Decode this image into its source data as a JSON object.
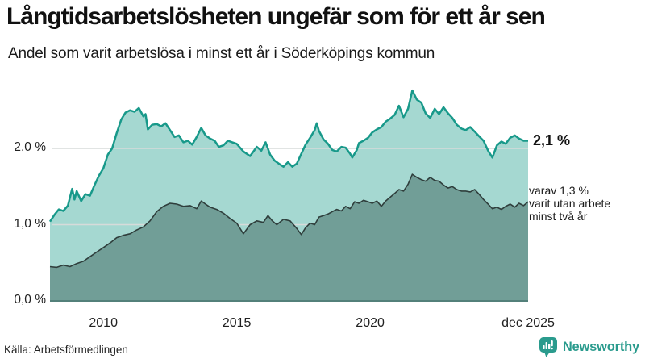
{
  "header": {
    "title": "Långtidsarbetslösheten ungefär som för ett år sen",
    "subtitle": "Andel som varit arbetslösa i minst ett år i Söderköpings kommun"
  },
  "footer": {
    "source": "Källa: Arbetsförmedlingen",
    "brand": "Newsworthy"
  },
  "colors": {
    "accent_teal": "#18998a",
    "fill_light": "#a5d8d1",
    "fill_dark": "#719e97",
    "line_dark": "#2f3e3c",
    "baseline": "#53807a",
    "grid": "#d7dbda",
    "text": "#1a1a1a",
    "brand_teal": "#2a9b8d"
  },
  "chart_data": {
    "type": "area",
    "title": "Långtidsarbetslösheten ungefär som för ett år sen",
    "subtitle": "Andel som varit arbetslösa i minst ett år i Söderköpings kommun",
    "unit": "%",
    "x_range": [
      2008.0,
      2025.92
    ],
    "ylim": [
      0,
      2.9
    ],
    "grid": true,
    "yticks": [
      {
        "value": 0,
        "label": "0,0 %"
      },
      {
        "value": 1,
        "label": "1,0 %"
      },
      {
        "value": 2,
        "label": "2,0 %"
      }
    ],
    "xticks": [
      {
        "year": 2010,
        "label": "2010"
      },
      {
        "year": 2015,
        "label": "2015"
      },
      {
        "year": 2020,
        "label": "2020"
      },
      {
        "year": 2025.92,
        "label": "dec 2025"
      }
    ],
    "annotations": {
      "last_value_label": "2,1 %",
      "secondary_label": "varav 1,3 %\nvarit utan arbete\nminst två år"
    },
    "series": [
      {
        "name": "Arbetslösa minst ett år",
        "last_value": 2.1,
        "stroke": "#18998a",
        "stroke_width": 2.5,
        "fill": "#a5d8d1",
        "points": [
          [
            2008.0,
            1.04
          ],
          [
            2008.17,
            1.13
          ],
          [
            2008.33,
            1.2
          ],
          [
            2008.5,
            1.18
          ],
          [
            2008.67,
            1.25
          ],
          [
            2008.83,
            1.47
          ],
          [
            2008.92,
            1.33
          ],
          [
            2009.0,
            1.44
          ],
          [
            2009.17,
            1.31
          ],
          [
            2009.33,
            1.4
          ],
          [
            2009.5,
            1.38
          ],
          [
            2009.67,
            1.52
          ],
          [
            2009.83,
            1.64
          ],
          [
            2010.0,
            1.74
          ],
          [
            2010.17,
            1.92
          ],
          [
            2010.33,
            2.0
          ],
          [
            2010.5,
            2.2
          ],
          [
            2010.67,
            2.38
          ],
          [
            2010.83,
            2.47
          ],
          [
            2011.0,
            2.5
          ],
          [
            2011.17,
            2.48
          ],
          [
            2011.33,
            2.53
          ],
          [
            2011.5,
            2.42
          ],
          [
            2011.58,
            2.45
          ],
          [
            2011.67,
            2.25
          ],
          [
            2011.83,
            2.31
          ],
          [
            2012.0,
            2.32
          ],
          [
            2012.17,
            2.29
          ],
          [
            2012.33,
            2.33
          ],
          [
            2012.5,
            2.24
          ],
          [
            2012.67,
            2.15
          ],
          [
            2012.83,
            2.17
          ],
          [
            2013.0,
            2.08
          ],
          [
            2013.17,
            2.1
          ],
          [
            2013.33,
            2.05
          ],
          [
            2013.5,
            2.15
          ],
          [
            2013.67,
            2.27
          ],
          [
            2013.83,
            2.17
          ],
          [
            2014.0,
            2.13
          ],
          [
            2014.17,
            2.1
          ],
          [
            2014.33,
            2.02
          ],
          [
            2014.5,
            2.04
          ],
          [
            2014.67,
            2.1
          ],
          [
            2014.83,
            2.08
          ],
          [
            2015.0,
            2.06
          ],
          [
            2015.25,
            1.96
          ],
          [
            2015.5,
            1.9
          ],
          [
            2015.75,
            2.02
          ],
          [
            2015.92,
            1.97
          ],
          [
            2016.08,
            2.08
          ],
          [
            2016.25,
            1.92
          ],
          [
            2016.42,
            1.84
          ],
          [
            2016.58,
            1.8
          ],
          [
            2016.75,
            1.76
          ],
          [
            2016.92,
            1.82
          ],
          [
            2017.08,
            1.76
          ],
          [
            2017.25,
            1.8
          ],
          [
            2017.42,
            1.93
          ],
          [
            2017.58,
            2.05
          ],
          [
            2017.75,
            2.14
          ],
          [
            2017.92,
            2.24
          ],
          [
            2018.0,
            2.33
          ],
          [
            2018.08,
            2.23
          ],
          [
            2018.25,
            2.12
          ],
          [
            2018.42,
            2.06
          ],
          [
            2018.58,
            1.98
          ],
          [
            2018.75,
            1.96
          ],
          [
            2018.92,
            2.02
          ],
          [
            2019.08,
            2.01
          ],
          [
            2019.25,
            1.93
          ],
          [
            2019.33,
            1.88
          ],
          [
            2019.5,
            1.98
          ],
          [
            2019.58,
            2.07
          ],
          [
            2019.75,
            2.1
          ],
          [
            2019.92,
            2.14
          ],
          [
            2020.08,
            2.21
          ],
          [
            2020.25,
            2.25
          ],
          [
            2020.42,
            2.28
          ],
          [
            2020.58,
            2.35
          ],
          [
            2020.75,
            2.39
          ],
          [
            2020.92,
            2.44
          ],
          [
            2021.08,
            2.56
          ],
          [
            2021.25,
            2.41
          ],
          [
            2021.42,
            2.52
          ],
          [
            2021.58,
            2.76
          ],
          [
            2021.75,
            2.64
          ],
          [
            2021.92,
            2.6
          ],
          [
            2022.08,
            2.46
          ],
          [
            2022.25,
            2.4
          ],
          [
            2022.42,
            2.52
          ],
          [
            2022.58,
            2.45
          ],
          [
            2022.75,
            2.54
          ],
          [
            2022.92,
            2.46
          ],
          [
            2023.08,
            2.4
          ],
          [
            2023.25,
            2.31
          ],
          [
            2023.42,
            2.26
          ],
          [
            2023.58,
            2.24
          ],
          [
            2023.75,
            2.28
          ],
          [
            2023.92,
            2.22
          ],
          [
            2024.08,
            2.16
          ],
          [
            2024.25,
            2.1
          ],
          [
            2024.42,
            1.97
          ],
          [
            2024.58,
            1.88
          ],
          [
            2024.75,
            2.04
          ],
          [
            2024.92,
            2.09
          ],
          [
            2025.08,
            2.06
          ],
          [
            2025.25,
            2.14
          ],
          [
            2025.42,
            2.17
          ],
          [
            2025.58,
            2.13
          ],
          [
            2025.75,
            2.1
          ],
          [
            2025.92,
            2.1
          ]
        ]
      },
      {
        "name": "varav utan arbete minst två år",
        "last_value": 1.3,
        "stroke": "#2f3e3c",
        "stroke_width": 1.6,
        "fill": "#719e97",
        "points": [
          [
            2008.0,
            0.45
          ],
          [
            2008.25,
            0.44
          ],
          [
            2008.5,
            0.47
          ],
          [
            2008.75,
            0.45
          ],
          [
            2009.0,
            0.49
          ],
          [
            2009.25,
            0.52
          ],
          [
            2009.5,
            0.58
          ],
          [
            2009.75,
            0.64
          ],
          [
            2010.0,
            0.7
          ],
          [
            2010.25,
            0.76
          ],
          [
            2010.5,
            0.83
          ],
          [
            2010.75,
            0.86
          ],
          [
            2011.0,
            0.88
          ],
          [
            2011.25,
            0.93
          ],
          [
            2011.5,
            0.97
          ],
          [
            2011.75,
            1.05
          ],
          [
            2012.0,
            1.17
          ],
          [
            2012.25,
            1.24
          ],
          [
            2012.5,
            1.28
          ],
          [
            2012.75,
            1.27
          ],
          [
            2013.0,
            1.24
          ],
          [
            2013.25,
            1.25
          ],
          [
            2013.5,
            1.21
          ],
          [
            2013.67,
            1.31
          ],
          [
            2013.83,
            1.27
          ],
          [
            2014.0,
            1.23
          ],
          [
            2014.25,
            1.2
          ],
          [
            2014.5,
            1.15
          ],
          [
            2014.75,
            1.08
          ],
          [
            2015.0,
            1.02
          ],
          [
            2015.25,
            0.88
          ],
          [
            2015.5,
            1.0
          ],
          [
            2015.75,
            1.05
          ],
          [
            2016.0,
            1.03
          ],
          [
            2016.17,
            1.12
          ],
          [
            2016.33,
            1.05
          ],
          [
            2016.5,
            1.0
          ],
          [
            2016.75,
            1.07
          ],
          [
            2017.0,
            1.05
          ],
          [
            2017.25,
            0.95
          ],
          [
            2017.42,
            0.87
          ],
          [
            2017.58,
            0.96
          ],
          [
            2017.75,
            1.02
          ],
          [
            2017.92,
            1.0
          ],
          [
            2018.08,
            1.1
          ],
          [
            2018.25,
            1.12
          ],
          [
            2018.42,
            1.14
          ],
          [
            2018.58,
            1.17
          ],
          [
            2018.75,
            1.2
          ],
          [
            2018.92,
            1.18
          ],
          [
            2019.08,
            1.24
          ],
          [
            2019.25,
            1.21
          ],
          [
            2019.42,
            1.3
          ],
          [
            2019.58,
            1.28
          ],
          [
            2019.75,
            1.32
          ],
          [
            2019.92,
            1.3
          ],
          [
            2020.08,
            1.28
          ],
          [
            2020.25,
            1.31
          ],
          [
            2020.42,
            1.24
          ],
          [
            2020.58,
            1.31
          ],
          [
            2020.75,
            1.36
          ],
          [
            2020.92,
            1.41
          ],
          [
            2021.08,
            1.46
          ],
          [
            2021.25,
            1.44
          ],
          [
            2021.42,
            1.53
          ],
          [
            2021.58,
            1.66
          ],
          [
            2021.75,
            1.62
          ],
          [
            2021.92,
            1.59
          ],
          [
            2022.08,
            1.57
          ],
          [
            2022.25,
            1.62
          ],
          [
            2022.42,
            1.58
          ],
          [
            2022.58,
            1.57
          ],
          [
            2022.75,
            1.52
          ],
          [
            2022.92,
            1.48
          ],
          [
            2023.08,
            1.5
          ],
          [
            2023.25,
            1.46
          ],
          [
            2023.42,
            1.44
          ],
          [
            2023.58,
            1.44
          ],
          [
            2023.75,
            1.43
          ],
          [
            2023.92,
            1.46
          ],
          [
            2024.08,
            1.4
          ],
          [
            2024.25,
            1.33
          ],
          [
            2024.42,
            1.27
          ],
          [
            2024.58,
            1.21
          ],
          [
            2024.75,
            1.23
          ],
          [
            2024.92,
            1.2
          ],
          [
            2025.08,
            1.24
          ],
          [
            2025.25,
            1.27
          ],
          [
            2025.42,
            1.23
          ],
          [
            2025.58,
            1.28
          ],
          [
            2025.75,
            1.25
          ],
          [
            2025.92,
            1.3
          ]
        ]
      }
    ]
  }
}
